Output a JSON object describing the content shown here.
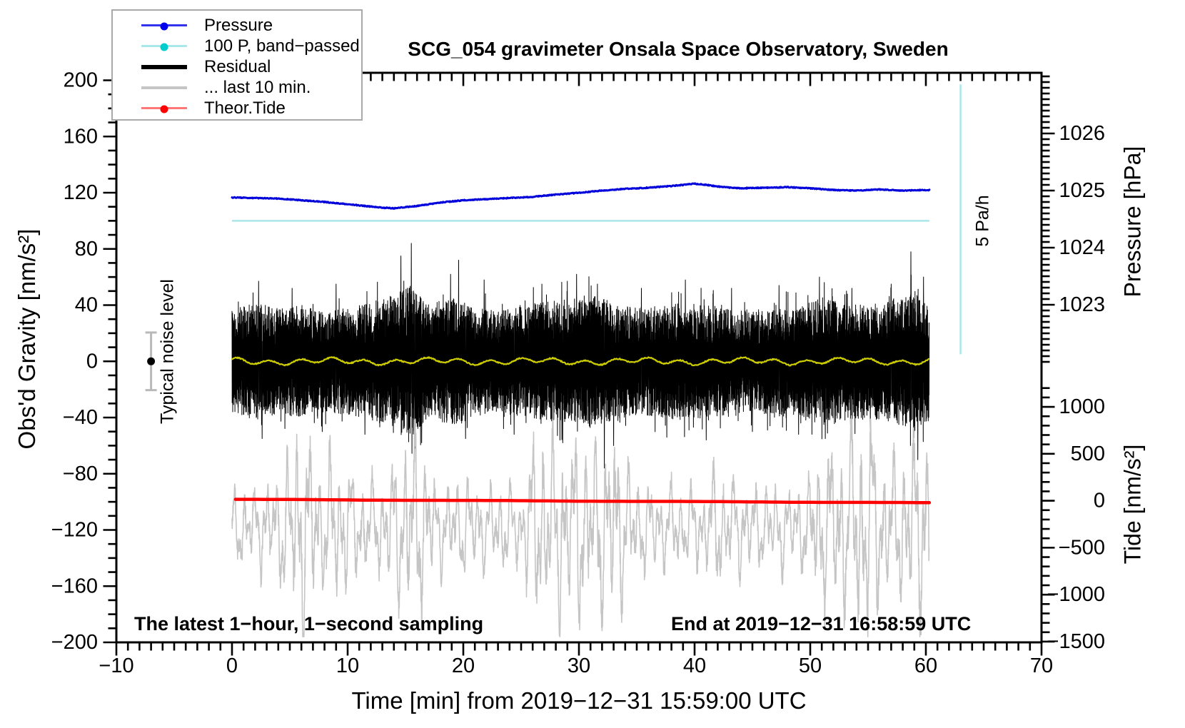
{
  "title": "SCG_054 gravimeter Onsala Space Observatory, Sweden",
  "annotations": {
    "sampling": "The latest 1−hour, 1−second sampling",
    "end_time": "End at 2019−12−31 16:58:59 UTC",
    "noise_level": "Typical noise level",
    "pressure_rate": "5 Pa/h"
  },
  "axes": {
    "x": {
      "label": "Time [min] from 2019−12−31 15:59:00 UTC",
      "min": -10,
      "max": 70,
      "major_step": 10,
      "minor_step": 1
    },
    "y_left": {
      "label": "Obs'd Gravity [nm/s²]",
      "min": -200,
      "max": 200,
      "major_step": 40,
      "minor_step": 10
    },
    "y_pressure": {
      "label": "Pressure [hPa]",
      "labeled": [
        1026,
        1025,
        1024,
        1023
      ],
      "minor_step": 0.1,
      "minor_min": 1022.0,
      "minor_max": 1027.0
    },
    "y_tide": {
      "label": "Tide [nm/s²]",
      "labeled": [
        1000,
        500,
        0,
        -500,
        -1000,
        -1500
      ],
      "minor_step": 100,
      "minor_min": -1500,
      "minor_max": 1200
    }
  },
  "legend": {
    "entries": [
      {
        "label": "Pressure",
        "line_color": "#3333ee",
        "dot_color": "#0000ee",
        "dot": true,
        "thickness": 3
      },
      {
        "label": "100 P, band−passed",
        "line_color": "#a8e8e8",
        "dot_color": "#00cccc",
        "dot": true,
        "thickness": 3
      },
      {
        "label": "Residual",
        "line_color": "#000000",
        "dot": false,
        "thickness": 6
      },
      {
        "label": "... last 10 min.",
        "line_color": "#c5c5c5",
        "dot": false,
        "thickness": 4
      },
      {
        "label": "Theor.Tide",
        "line_color": "#ff7777",
        "dot_color": "#ff0000",
        "dot": true,
        "thickness": 3
      }
    ]
  },
  "chart_data": {
    "type": "line",
    "title": "SCG_054 gravimeter Onsala Space Observatory, Sweden",
    "xlabel": "Time [min] from 2019−12−31 15:59:00 UTC",
    "x_range": [
      -10,
      70
    ],
    "y_left_range": [
      -200,
      200
    ],
    "pressure_axis_labels": [
      1026,
      1025,
      1024,
      1023
    ],
    "tide_axis_labels": [
      1000,
      500,
      0,
      -500,
      -1000,
      -1500
    ],
    "series": [
      {
        "name": "Pressure",
        "axis": "pressure_hPa",
        "color": "#0000dd",
        "width": 3,
        "step_min": 0.05,
        "jitter_hPa": 0.015,
        "control_points": [
          [
            0,
            1024.88
          ],
          [
            2,
            1024.87
          ],
          [
            4,
            1024.86
          ],
          [
            6,
            1024.83
          ],
          [
            8,
            1024.8
          ],
          [
            10,
            1024.76
          ],
          [
            12,
            1024.72
          ],
          [
            13,
            1024.7
          ],
          [
            14,
            1024.69
          ],
          [
            15,
            1024.71
          ],
          [
            16,
            1024.73
          ],
          [
            17,
            1024.76
          ],
          [
            18,
            1024.79
          ],
          [
            20,
            1024.83
          ],
          [
            22,
            1024.85
          ],
          [
            24,
            1024.87
          ],
          [
            26,
            1024.89
          ],
          [
            28,
            1024.93
          ],
          [
            30,
            1024.96
          ],
          [
            32,
            1025.0
          ],
          [
            34,
            1025.03
          ],
          [
            36,
            1025.05
          ],
          [
            38,
            1025.08
          ],
          [
            40,
            1025.12
          ],
          [
            41,
            1025.1
          ],
          [
            42,
            1025.07
          ],
          [
            44,
            1025.04
          ],
          [
            46,
            1025.05
          ],
          [
            48,
            1025.06
          ],
          [
            50,
            1025.04
          ],
          [
            52,
            1025.01
          ],
          [
            54,
            1025.0
          ],
          [
            56,
            1025.02
          ],
          [
            58,
            1025.0
          ],
          [
            60,
            1025.01
          ],
          [
            60.3,
            1025.01
          ]
        ]
      },
      {
        "name": "100 P, band−passed",
        "axis": "gravity_nm_s2",
        "color": "#a8e8e8",
        "width": 2.5,
        "constant_value": 100,
        "t_start": 0,
        "t_end": 60.3
      },
      {
        "name": "Residual",
        "axis": "gravity_nm_s2",
        "color": "#000000",
        "width": 1,
        "t_start": 0,
        "t_end": 60.3,
        "step_min": 0.012,
        "seed": 20191231,
        "envelope": [
          [
            0,
            36
          ],
          [
            2,
            42
          ],
          [
            4,
            38
          ],
          [
            6,
            40
          ],
          [
            8,
            36
          ],
          [
            10,
            38
          ],
          [
            12,
            42
          ],
          [
            14,
            48
          ],
          [
            15.5,
            54
          ],
          [
            17,
            40
          ],
          [
            19,
            46
          ],
          [
            21,
            38
          ],
          [
            23,
            36
          ],
          [
            25,
            40
          ],
          [
            27,
            42
          ],
          [
            29,
            44
          ],
          [
            31,
            48
          ],
          [
            33,
            42
          ],
          [
            35,
            38
          ],
          [
            37,
            40
          ],
          [
            39,
            42
          ],
          [
            41,
            40
          ],
          [
            43,
            38
          ],
          [
            45,
            36
          ],
          [
            47,
            40
          ],
          [
            49,
            38
          ],
          [
            51,
            46
          ],
          [
            53,
            42
          ],
          [
            55,
            40
          ],
          [
            57,
            44
          ],
          [
            59,
            50
          ],
          [
            60.3,
            42
          ]
        ],
        "spikes": [
          [
            2.3,
            57
          ],
          [
            2.6,
            -55
          ],
          [
            5.2,
            52
          ],
          [
            7.8,
            -50
          ],
          [
            9.0,
            55
          ],
          [
            11.5,
            -52
          ],
          [
            14.6,
            75
          ],
          [
            15.5,
            84
          ],
          [
            15.8,
            -62
          ],
          [
            16.4,
            -58
          ],
          [
            18.9,
            62
          ],
          [
            19.6,
            72
          ],
          [
            20.2,
            -55
          ],
          [
            21.8,
            58
          ],
          [
            24.4,
            -52
          ],
          [
            26.8,
            55
          ],
          [
            28.6,
            -58
          ],
          [
            29.8,
            62
          ],
          [
            31.6,
            55
          ],
          [
            32.2,
            -76
          ],
          [
            33.0,
            -60
          ],
          [
            35.4,
            52
          ],
          [
            37.6,
            -54
          ],
          [
            39.2,
            58
          ],
          [
            41.0,
            -56
          ],
          [
            43.2,
            52
          ],
          [
            45.0,
            -50
          ],
          [
            47.3,
            54
          ],
          [
            49.0,
            -52
          ],
          [
            50.8,
            60
          ],
          [
            51.3,
            -55
          ],
          [
            53.6,
            52
          ],
          [
            55.2,
            -54
          ],
          [
            57.0,
            55
          ],
          [
            58.7,
            78
          ],
          [
            59.3,
            -70
          ],
          [
            59.8,
            60
          ]
        ]
      },
      {
        "name": "Residual smoothed",
        "axis": "gravity_nm_s2",
        "color": "#cccc00",
        "width": 2.2,
        "base": 0,
        "amplitude": 3,
        "t_start": 0,
        "t_end": 60.3,
        "step_min": 0.06
      },
      {
        "name": "... last 10 min.",
        "axis": "gravity_nm_s2",
        "color": "#c5c5c5",
        "width": 1.6,
        "center": -118,
        "clip": [
          -196,
          -41
        ],
        "t_start": 0,
        "t_end": 60.3,
        "step_min": 0.02,
        "envelope": [
          [
            0,
            25
          ],
          [
            2,
            28
          ],
          [
            4,
            35
          ],
          [
            5,
            55
          ],
          [
            6,
            75
          ],
          [
            7,
            60
          ],
          [
            8,
            45
          ],
          [
            9,
            55
          ],
          [
            10,
            40
          ],
          [
            11,
            35
          ],
          [
            12,
            30
          ],
          [
            13,
            35
          ],
          [
            14,
            45
          ],
          [
            15,
            65
          ],
          [
            16,
            70
          ],
          [
            17,
            40
          ],
          [
            18,
            30
          ],
          [
            19,
            28
          ],
          [
            20,
            35
          ],
          [
            21,
            30
          ],
          [
            22,
            28
          ],
          [
            23,
            30
          ],
          [
            24,
            28
          ],
          [
            25,
            30
          ],
          [
            26,
            55
          ],
          [
            27,
            70
          ],
          [
            28,
            65
          ],
          [
            29,
            60
          ],
          [
            30,
            65
          ],
          [
            31,
            55
          ],
          [
            32,
            60
          ],
          [
            33,
            70
          ],
          [
            34,
            50
          ],
          [
            35,
            35
          ],
          [
            36,
            30
          ],
          [
            37,
            28
          ],
          [
            38,
            30
          ],
          [
            39,
            28
          ],
          [
            40,
            30
          ],
          [
            41,
            28
          ],
          [
            42,
            45
          ],
          [
            43,
            35
          ],
          [
            44,
            30
          ],
          [
            45,
            28
          ],
          [
            46,
            30
          ],
          [
            47,
            28
          ],
          [
            48,
            30
          ],
          [
            49,
            28
          ],
          [
            50,
            35
          ],
          [
            51,
            60
          ],
          [
            52,
            55
          ],
          [
            53,
            65
          ],
          [
            54,
            70
          ],
          [
            55,
            75
          ],
          [
            56,
            60
          ],
          [
            57,
            45
          ],
          [
            58,
            55
          ],
          [
            59,
            70
          ],
          [
            60.3,
            55
          ]
        ]
      },
      {
        "name": "Theor.Tide",
        "axis": "tide_nm_s2",
        "color": "#ff0000",
        "width": 4.5,
        "t_start": 0.3,
        "t_end": 60.3,
        "step_min": 0.5,
        "start_value": 15,
        "trend_per_min": -0.61,
        "wiggle_amp": 1.5
      }
    ],
    "noise_bar": {
      "t": -7,
      "center": 0,
      "half_height": 20.5,
      "color": "#b9b9b9",
      "dot_color": "#000000",
      "label": "Typical noise level"
    },
    "rate_bar": {
      "t": 63,
      "g_top": 197,
      "g_bottom": 5,
      "color": "#a8e8e8",
      "label": "5 Pa/h"
    }
  }
}
